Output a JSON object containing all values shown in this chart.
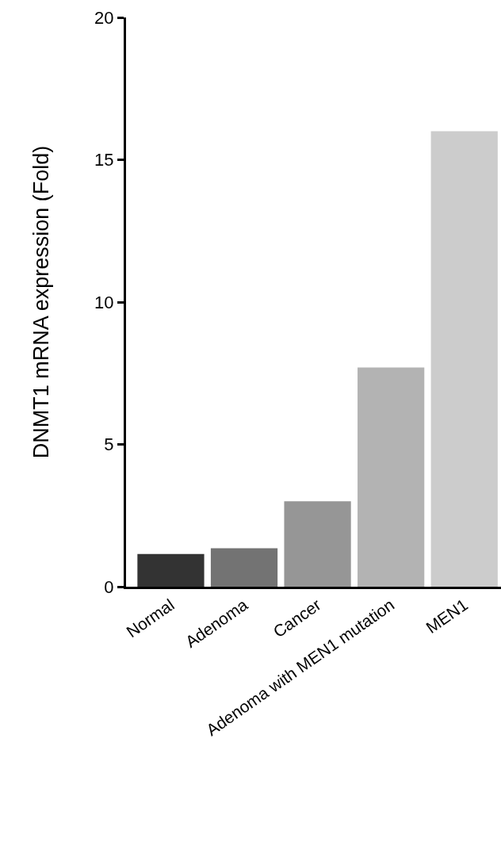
{
  "chart_data": {
    "type": "bar",
    "ylabel": "DNMT1 mRNA expression (Fold)",
    "categories": [
      "Normal",
      "Adenoma",
      "Cancer",
      "Adenoma with MEN1 mutation",
      "MEN1"
    ],
    "values": [
      1.15,
      1.35,
      3.0,
      7.7,
      16.0
    ],
    "colors": [
      "#333333",
      "#737373",
      "#969696",
      "#b3b3b3",
      "#cccccc"
    ],
    "ylim": [
      0,
      20
    ],
    "yticks": [
      0,
      5,
      10,
      15,
      20
    ],
    "grid": false
  }
}
